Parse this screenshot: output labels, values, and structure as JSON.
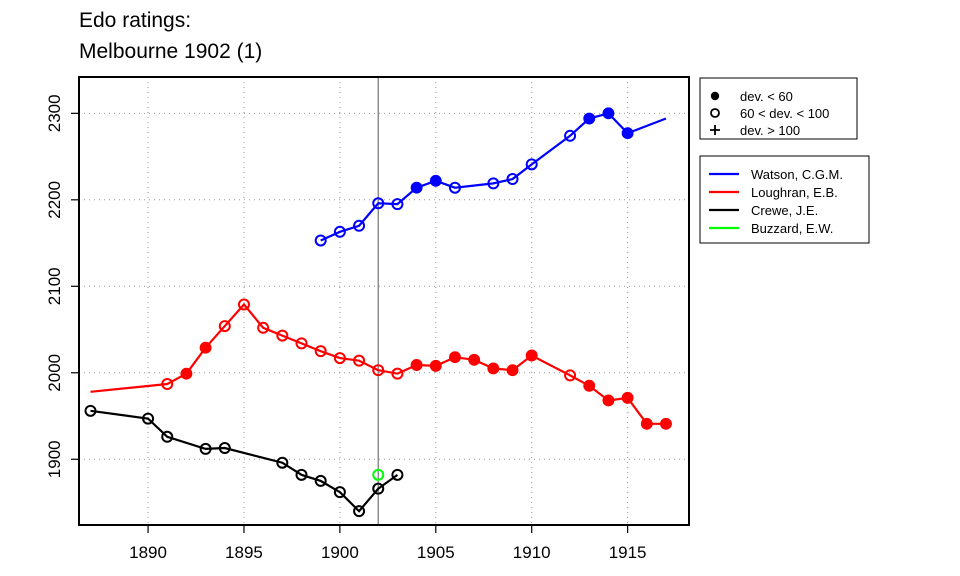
{
  "chart_data": {
    "type": "line",
    "title_lines": [
      "Edo ratings:",
      "Melbourne 1902 (1)"
    ],
    "xlabel": "",
    "ylabel": "",
    "xlim": [
      1886.4,
      1918.2
    ],
    "ylim": [
      1824,
      2342
    ],
    "x_ticks": [
      1890,
      1895,
      1900,
      1905,
      1910,
      1915
    ],
    "y_ticks": [
      1900,
      2000,
      2100,
      2200,
      2300
    ],
    "grid": true,
    "reference_line_x": 1902,
    "marker_legend": {
      "placement": "top-right",
      "items": [
        {
          "marker": "filled",
          "label": "dev. < 60"
        },
        {
          "marker": "open",
          "label": "60 < dev. < 100"
        },
        {
          "marker": "plus",
          "label": "dev. > 100"
        }
      ]
    },
    "series_legend": {
      "placement": "right",
      "items": [
        {
          "name": "Watson, C.G.M.",
          "color": "#0000ff"
        },
        {
          "name": "Loughran, E.B.",
          "color": "#ff0000"
        },
        {
          "name": "Crewe, J.E.",
          "color": "#000000"
        },
        {
          "name": "Buzzard, E.W.",
          "color": "#00ff00"
        }
      ]
    },
    "series": [
      {
        "name": "Watson, C.G.M.",
        "color": "#0000ff",
        "points": [
          {
            "x": 1899,
            "y": 2153,
            "marker": "open"
          },
          {
            "x": 1900,
            "y": 2163,
            "marker": "open"
          },
          {
            "x": 1901,
            "y": 2170,
            "marker": "open"
          },
          {
            "x": 1902,
            "y": 2196,
            "marker": "open"
          },
          {
            "x": 1903,
            "y": 2195,
            "marker": "open"
          },
          {
            "x": 1904,
            "y": 2214,
            "marker": "filled"
          },
          {
            "x": 1905,
            "y": 2222,
            "marker": "filled"
          },
          {
            "x": 1906,
            "y": 2214,
            "marker": "open"
          },
          {
            "x": 1908,
            "y": 2219,
            "marker": "open"
          },
          {
            "x": 1909,
            "y": 2224,
            "marker": "open"
          },
          {
            "x": 1910,
            "y": 2241,
            "marker": "open"
          },
          {
            "x": 1912,
            "y": 2274,
            "marker": "open"
          },
          {
            "x": 1913,
            "y": 2294,
            "marker": "filled"
          },
          {
            "x": 1914,
            "y": 2300,
            "marker": "filled"
          },
          {
            "x": 1915,
            "y": 2277,
            "marker": "filled"
          },
          {
            "x": 1917,
            "y": 2294,
            "marker": "none"
          }
        ]
      },
      {
        "name": "Loughran, E.B.",
        "color": "#ff0000",
        "points": [
          {
            "x": 1887,
            "y": 1978,
            "marker": "none"
          },
          {
            "x": 1891,
            "y": 1987,
            "marker": "open"
          },
          {
            "x": 1892,
            "y": 1999,
            "marker": "filled"
          },
          {
            "x": 1893,
            "y": 2029,
            "marker": "filled"
          },
          {
            "x": 1894,
            "y": 2054,
            "marker": "open"
          },
          {
            "x": 1895,
            "y": 2079,
            "marker": "open"
          },
          {
            "x": 1896,
            "y": 2052,
            "marker": "open"
          },
          {
            "x": 1897,
            "y": 2043,
            "marker": "open"
          },
          {
            "x": 1898,
            "y": 2034,
            "marker": "open"
          },
          {
            "x": 1899,
            "y": 2025,
            "marker": "open"
          },
          {
            "x": 1900,
            "y": 2017,
            "marker": "open"
          },
          {
            "x": 1901,
            "y": 2014,
            "marker": "open"
          },
          {
            "x": 1902,
            "y": 2003,
            "marker": "open"
          },
          {
            "x": 1903,
            "y": 1999,
            "marker": "open"
          },
          {
            "x": 1904,
            "y": 2009,
            "marker": "filled"
          },
          {
            "x": 1905,
            "y": 2008,
            "marker": "filled"
          },
          {
            "x": 1906,
            "y": 2018,
            "marker": "filled"
          },
          {
            "x": 1907,
            "y": 2015,
            "marker": "filled"
          },
          {
            "x": 1908,
            "y": 2005,
            "marker": "filled"
          },
          {
            "x": 1909,
            "y": 2003,
            "marker": "filled"
          },
          {
            "x": 1910,
            "y": 2020,
            "marker": "filled"
          },
          {
            "x": 1912,
            "y": 1997,
            "marker": "open"
          },
          {
            "x": 1913,
            "y": 1985,
            "marker": "filled"
          },
          {
            "x": 1914,
            "y": 1968,
            "marker": "filled"
          },
          {
            "x": 1915,
            "y": 1971,
            "marker": "filled"
          },
          {
            "x": 1916,
            "y": 1941,
            "marker": "filled"
          },
          {
            "x": 1917,
            "y": 1941,
            "marker": "filled"
          }
        ]
      },
      {
        "name": "Crewe, J.E.",
        "color": "#000000",
        "points": [
          {
            "x": 1887,
            "y": 1956,
            "marker": "open"
          },
          {
            "x": 1890,
            "y": 1947,
            "marker": "open"
          },
          {
            "x": 1891,
            "y": 1926,
            "marker": "open"
          },
          {
            "x": 1893,
            "y": 1912,
            "marker": "open"
          },
          {
            "x": 1894,
            "y": 1913,
            "marker": "open"
          },
          {
            "x": 1897,
            "y": 1896,
            "marker": "open"
          },
          {
            "x": 1898,
            "y": 1882,
            "marker": "open"
          },
          {
            "x": 1899,
            "y": 1875,
            "marker": "open"
          },
          {
            "x": 1900,
            "y": 1862,
            "marker": "open"
          },
          {
            "x": 1901,
            "y": 1840,
            "marker": "open"
          },
          {
            "x": 1902,
            "y": 1866,
            "marker": "open"
          },
          {
            "x": 1903,
            "y": 1882,
            "marker": "open"
          }
        ]
      },
      {
        "name": "Buzzard, E.W.",
        "color": "#00ff00",
        "points": [
          {
            "x": 1902,
            "y": 1882,
            "marker": "open"
          }
        ]
      }
    ]
  }
}
